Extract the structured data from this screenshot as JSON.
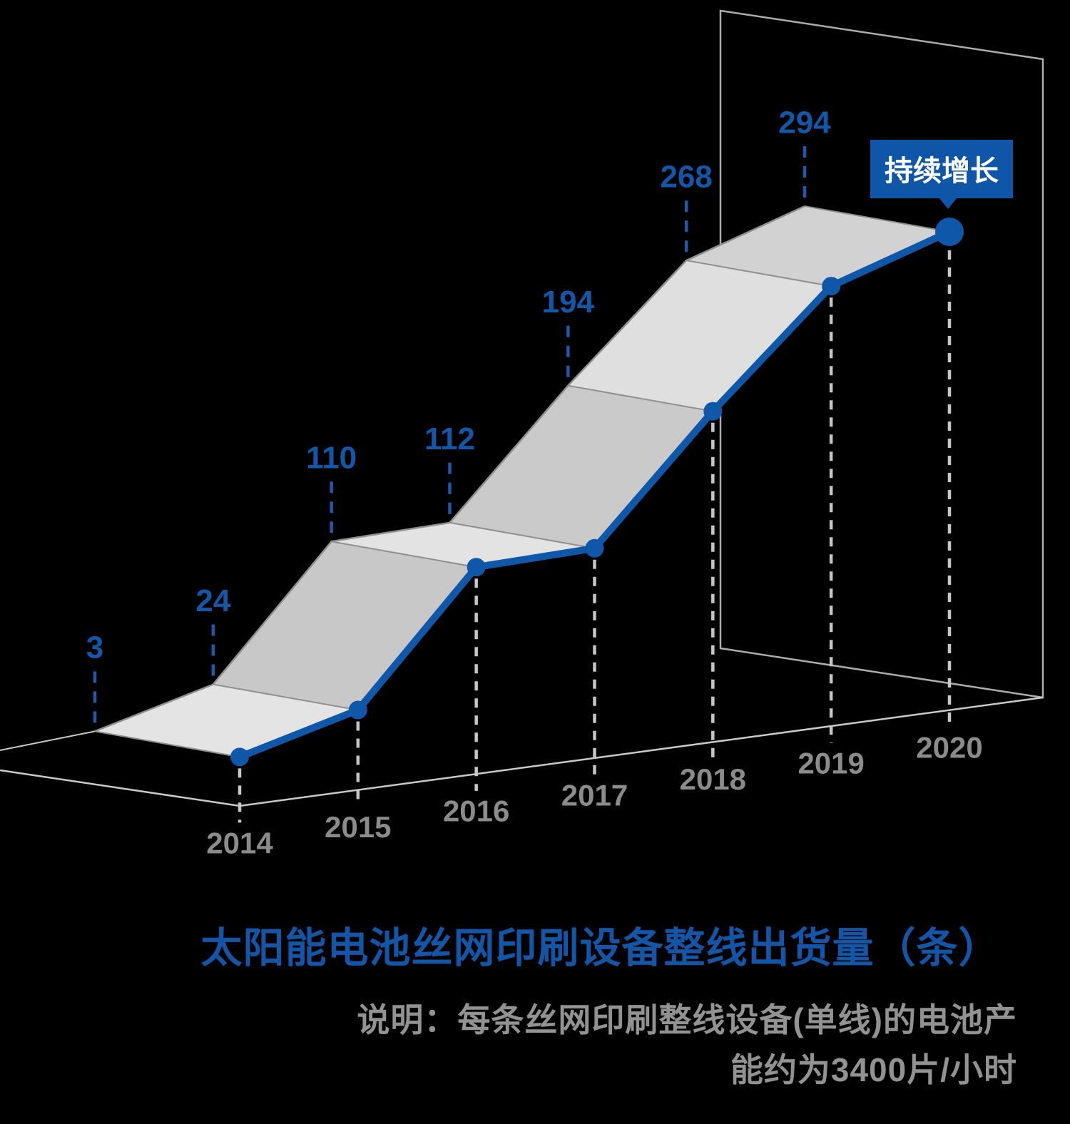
{
  "chart_data": {
    "type": "line",
    "variant": "3d-ribbon-area",
    "categories": [
      "2014",
      "2015",
      "2016",
      "2017",
      "2018",
      "2019",
      "2020"
    ],
    "values": [
      3,
      24,
      110,
      112,
      194,
      268,
      294
    ],
    "title": "太阳能电池丝网印刷设备整线出货量（条）",
    "note_lines": [
      "说明：每条丝网印刷整线设备(单线)的电池产",
      "能约为3400片/小时"
    ],
    "callout": {
      "label": "持续增长",
      "target_category": "2020"
    },
    "ylim": [
      0,
      300
    ],
    "grid": false,
    "legend_position": "none",
    "colors": {
      "background": "#000000",
      "line_blue": "#0F57A8",
      "value_label_blue": "#1257A8",
      "leader_dash_blue": "#2059A8",
      "badge_blue": "#0F56A8",
      "badge_text": "#FFFFFF",
      "year_label_gray": "#8B8B8B",
      "note_gray": "#929292",
      "title_blue": "#1356A8",
      "ribbon_shades": [
        "#E4E4E4",
        "#C8C8C8",
        "#E3E3E3",
        "#CACACA",
        "#DFDFDF",
        "#D2D2D2"
      ],
      "ribbon_edge_gray": "#8F8F8F",
      "floor_gray": "#C9C9C9",
      "panel_gray": "#ACACAC",
      "year_dash_gray": "#C6C6C6"
    }
  }
}
